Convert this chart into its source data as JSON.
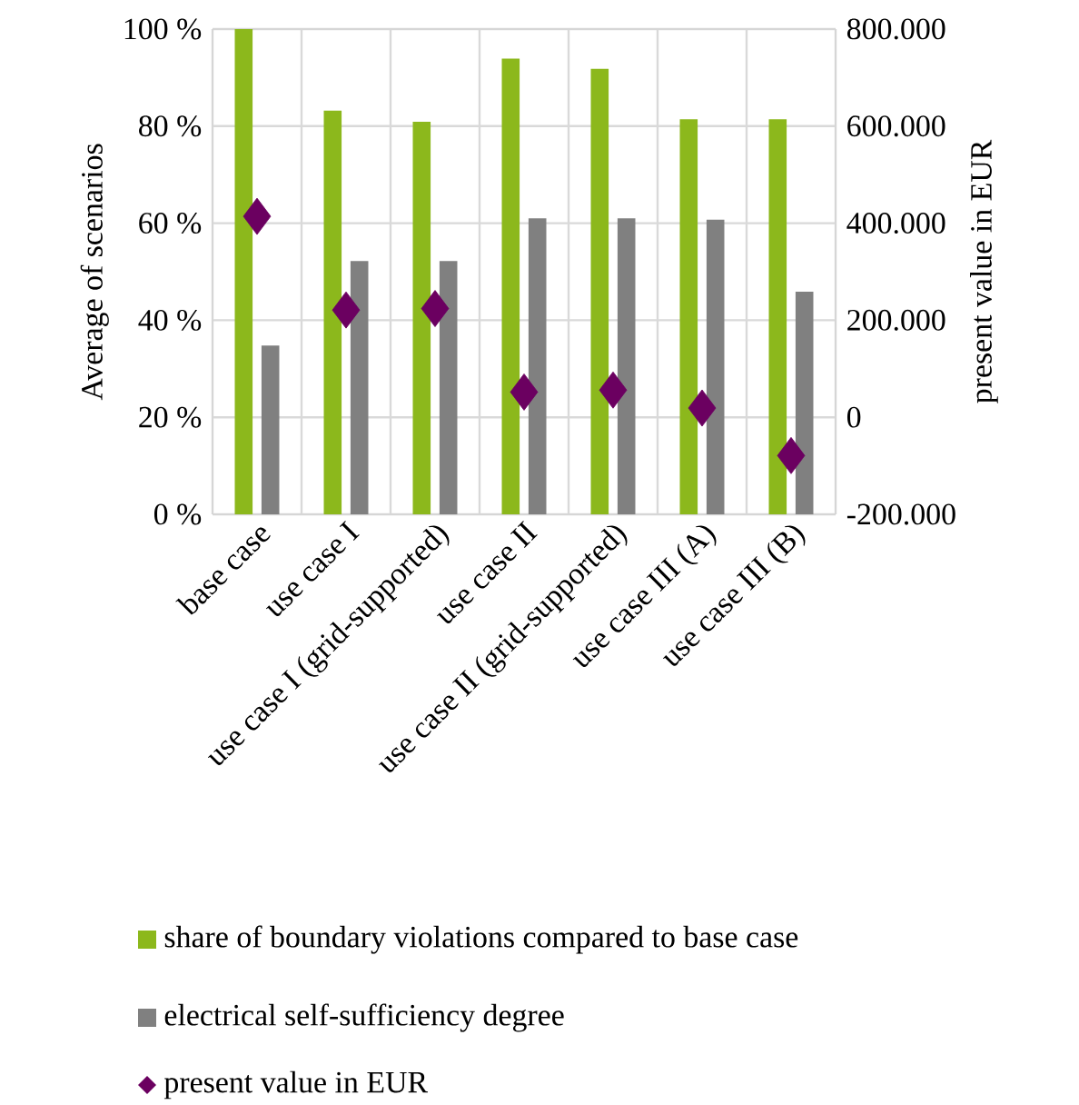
{
  "chart_data": {
    "type": "bar",
    "ylabel": "Average of scenarios",
    "y2label": "present value in EUR",
    "categories": [
      "base case",
      "use case I",
      "use case I (grid-supported)",
      "use case II",
      "use case II (grid-supported)",
      "use case III (A)",
      "use case III (B)"
    ],
    "series": [
      {
        "name": "share of boundary violations compared to base case",
        "color": "#8cb81c",
        "values": [
          100,
          83.2,
          80.9,
          93.9,
          91.8,
          81.4,
          81.4
        ]
      },
      {
        "name": "electrical self-sufficiency degree",
        "color": "#808080",
        "values": [
          34.8,
          52.2,
          52.2,
          61.0,
          61.0,
          60.7,
          45.9
        ]
      },
      {
        "name": "present value in EUR",
        "type": "scatter",
        "axis": "y2",
        "marker": "diamond",
        "color": "#6b0060",
        "values": [
          414000,
          221000,
          224000,
          52000,
          56000,
          19000,
          -79000
        ]
      }
    ],
    "ylim": [
      0,
      100
    ],
    "yticks": [
      {
        "value": 0,
        "label": "0 %"
      },
      {
        "value": 20,
        "label": "20 %"
      },
      {
        "value": 40,
        "label": "40 %"
      },
      {
        "value": 60,
        "label": "60 %"
      },
      {
        "value": 80,
        "label": "80 %"
      },
      {
        "value": 100,
        "label": "100 %"
      }
    ],
    "y2lim": [
      -200000,
      800000
    ],
    "y2ticks": [
      {
        "value": -200000,
        "label": "-200.000"
      },
      {
        "value": 0,
        "label": "0"
      },
      {
        "value": 200000,
        "label": "200.000"
      },
      {
        "value": 400000,
        "label": "400.000"
      },
      {
        "value": 600000,
        "label": "600.000"
      },
      {
        "value": 800000,
        "label": "800.000"
      }
    ],
    "grid": true,
    "legend": "bottom"
  }
}
